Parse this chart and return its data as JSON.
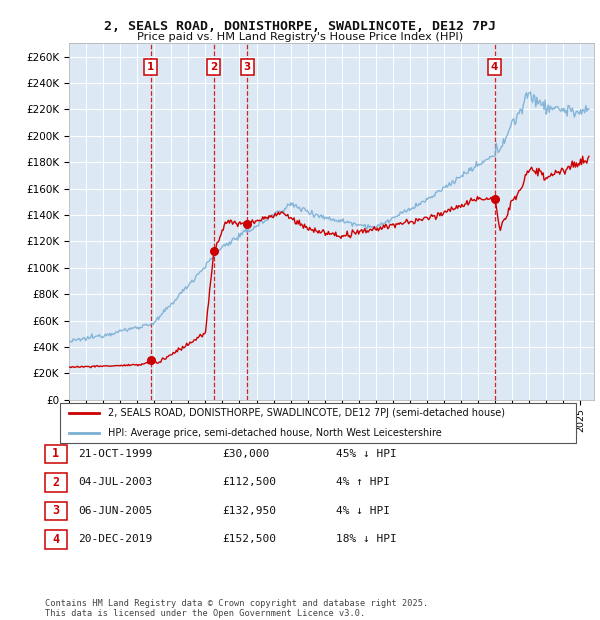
{
  "title": "2, SEALS ROAD, DONISTHORPE, SWADLINCOTE, DE12 7PJ",
  "subtitle": "Price paid vs. HM Land Registry's House Price Index (HPI)",
  "ylabel_ticks": [
    "£0",
    "£20K",
    "£40K",
    "£60K",
    "£80K",
    "£100K",
    "£120K",
    "£140K",
    "£160K",
    "£180K",
    "£200K",
    "£220K",
    "£240K",
    "£260K"
  ],
  "ylim": [
    0,
    270000
  ],
  "background_color": "#dce9f5",
  "grid_color": "#ffffff",
  "red_line_color": "#cc0000",
  "blue_line_color": "#7bafd4",
  "sale_transactions": [
    {
      "num": 1,
      "date": "21-OCT-1999",
      "year": 1999.8,
      "price": 30000
    },
    {
      "num": 2,
      "date": "04-JUL-2003",
      "year": 2003.5,
      "price": 112500
    },
    {
      "num": 3,
      "date": "06-JUN-2005",
      "year": 2005.45,
      "price": 132950
    },
    {
      "num": 4,
      "date": "20-DEC-2019",
      "year": 2019.97,
      "price": 152500
    }
  ],
  "legend_entries": [
    {
      "label": "2, SEALS ROAD, DONISTHORPE, SWADLINCOTE, DE12 7PJ (semi-detached house)",
      "color": "#cc0000"
    },
    {
      "label": "HPI: Average price, semi-detached house, North West Leicestershire",
      "color": "#7bafd4"
    }
  ],
  "table_rows": [
    {
      "num": "1",
      "date": "21-OCT-1999",
      "price": "£30,000",
      "pct": "45% ↓ HPI"
    },
    {
      "num": "2",
      "date": "04-JUL-2003",
      "price": "£112,500",
      "pct": "4% ↑ HPI"
    },
    {
      "num": "3",
      "date": "06-JUN-2005",
      "price": "£132,950",
      "pct": "4% ↓ HPI"
    },
    {
      "num": "4",
      "date": "20-DEC-2019",
      "price": "£152,500",
      "pct": "18% ↓ HPI"
    }
  ],
  "footer": "Contains HM Land Registry data © Crown copyright and database right 2025.\nThis data is licensed under the Open Government Licence v3.0."
}
